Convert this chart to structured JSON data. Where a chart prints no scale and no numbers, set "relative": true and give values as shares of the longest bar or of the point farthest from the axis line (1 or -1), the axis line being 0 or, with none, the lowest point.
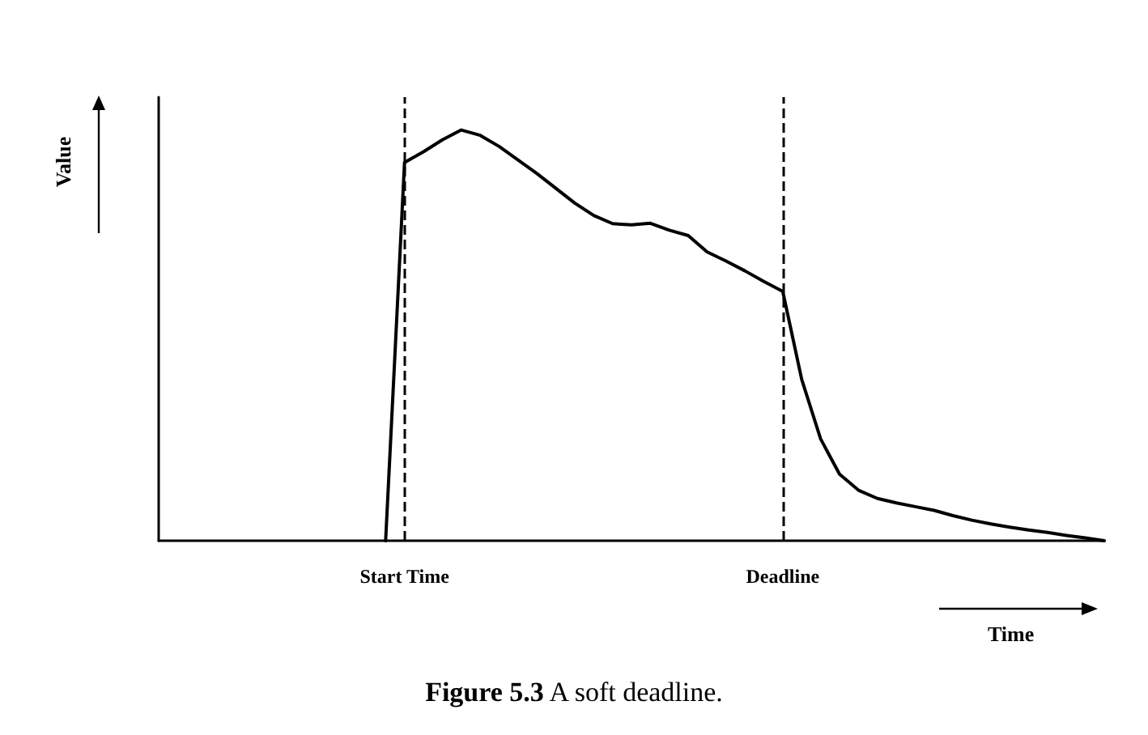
{
  "chart_data": {
    "type": "line",
    "title": "Figure 5.3 A soft deadline.",
    "xlabel": "Time",
    "ylabel": "Value",
    "relative": true,
    "categories": [
      null,
      null,
      null,
      null,
      null,
      null,
      null,
      null,
      null,
      null,
      null,
      null,
      null,
      "Start Time",
      null,
      null,
      null,
      null,
      null,
      null,
      null,
      null,
      null,
      null,
      null,
      null,
      null,
      null,
      null,
      null,
      null,
      null,
      null,
      "Deadline",
      null,
      null,
      null,
      null,
      null,
      null,
      null,
      null,
      null,
      null,
      null,
      null,
      null,
      null,
      null,
      null,
      null
    ],
    "series": [
      {
        "color": "#000000",
        "values": [
          null,
          null,
          null,
          null,
          null,
          null,
          null,
          null,
          null,
          null,
          null,
          null,
          0,
          0.921,
          0.947,
          0.976,
          1.0,
          0.987,
          0.96,
          0.927,
          0.894,
          0.858,
          0.822,
          0.792,
          0.772,
          0.769,
          0.773,
          0.756,
          0.743,
          0.703,
          0.681,
          0.657,
          0.631,
          0.607,
          0.393,
          0.248,
          0.162,
          0.123,
          0.103,
          0.092,
          0.083,
          0.074,
          0.061,
          0.05,
          0.041,
          0.033,
          0.026,
          0.02,
          0.013,
          0.007,
          0
        ]
      }
    ],
    "ref_lines": [
      {
        "axis": "x",
        "value": "Start Time",
        "color": "#000000",
        "line_style": "dashed"
      },
      {
        "axis": "x",
        "value": "Deadline",
        "color": "#000000",
        "line_style": "dashed"
      }
    ],
    "marker": "none",
    "line_style": "solid",
    "grid": false
  }
}
